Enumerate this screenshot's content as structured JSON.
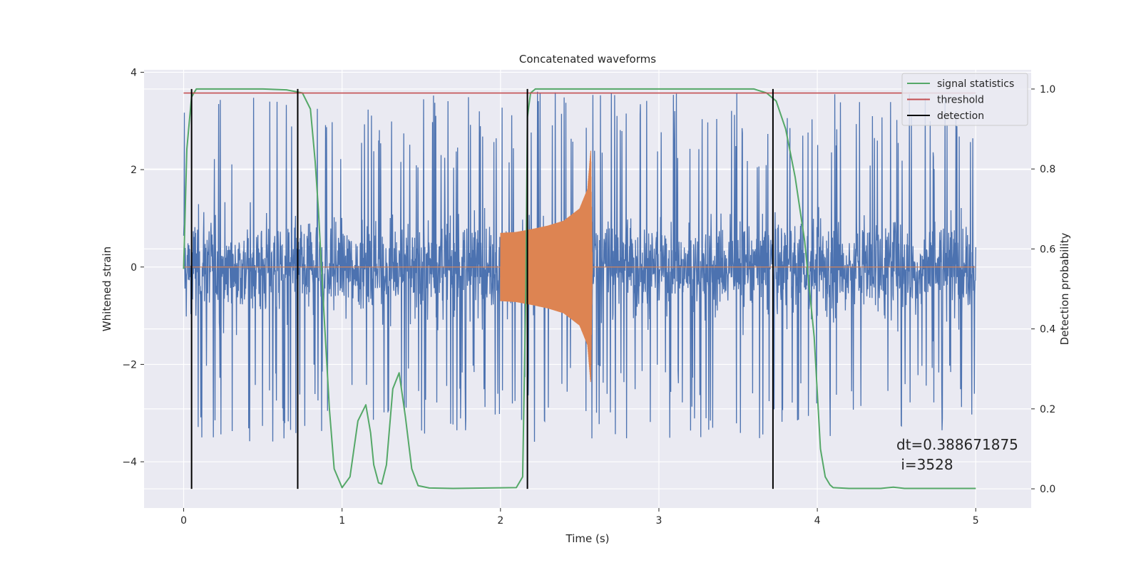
{
  "chart_data": {
    "type": "line",
    "title": "Concatenated waveforms",
    "xlabel": "Time (s)",
    "ylabel": "Whitened strain",
    "y2label": "Detection probability",
    "xlim": [
      -0.25,
      5.35
    ],
    "ylim": [
      -4.95,
      4.05
    ],
    "y2lim": [
      -0.048,
      1.048
    ],
    "xticks": [
      0,
      1,
      2,
      3,
      4,
      5
    ],
    "yticks": [
      -4,
      -2,
      0,
      2,
      4
    ],
    "yticklabels": [
      "−4",
      "−2",
      "0",
      "2",
      "4"
    ],
    "y2ticks": [
      0.0,
      0.2,
      0.4,
      0.6,
      0.8,
      1.0
    ],
    "y2ticklabels": [
      "0.0",
      "0.2",
      "0.4",
      "0.6",
      "0.8",
      "1.0"
    ],
    "grid": true,
    "legend_position": "top-right",
    "colors": {
      "background": "#eaeaf2",
      "grid": "#ffffff",
      "noise": "#4c72b0",
      "waveform": "#dd8452",
      "signal_statistics": "#55a868",
      "threshold": "#c44e52",
      "detection": "#000000"
    },
    "series": [
      {
        "name": "",
        "role": "whitened noisy strain (left axis)",
        "x_range": [
          0,
          5
        ],
        "approx_envelope": [
          -4.6,
          3.6
        ],
        "typical_spikes_abs": [
          2.0,
          3.6
        ]
      },
      {
        "name": "",
        "role": "clean injected chirp waveform (left axis)",
        "x": [
          0.0,
          2.0,
          2.0,
          2.1,
          2.2,
          2.3,
          2.4,
          2.5,
          2.55,
          2.57,
          2.58,
          5.0
        ],
        "amplitude": [
          0.0,
          0.0,
          0.7,
          0.72,
          0.78,
          0.85,
          0.95,
          1.2,
          1.6,
          2.4,
          0.0,
          0.0
        ]
      },
      {
        "name": "signal statistics",
        "axis": "right",
        "x": [
          0.0,
          0.02,
          0.05,
          0.08,
          0.1,
          0.15,
          0.5,
          0.65,
          0.75,
          0.8,
          0.83,
          0.85,
          0.88,
          0.92,
          0.95,
          1.0,
          1.05,
          1.1,
          1.15,
          1.18,
          1.2,
          1.23,
          1.25,
          1.28,
          1.32,
          1.36,
          1.4,
          1.44,
          1.48,
          1.55,
          1.7,
          2.1,
          2.14,
          2.16,
          2.17,
          2.19,
          2.22,
          2.3,
          2.6,
          3.6,
          3.68,
          3.74,
          3.8,
          3.86,
          3.92,
          3.98,
          4.02,
          4.05,
          4.08,
          4.1,
          4.2,
          4.4,
          4.48,
          4.55,
          5.0
        ],
        "values": [
          0.55,
          0.85,
          0.98,
          1.0,
          1.0,
          1.0,
          1.0,
          0.998,
          0.99,
          0.95,
          0.82,
          0.7,
          0.48,
          0.2,
          0.05,
          0.003,
          0.03,
          0.17,
          0.21,
          0.14,
          0.06,
          0.015,
          0.012,
          0.06,
          0.25,
          0.29,
          0.18,
          0.05,
          0.008,
          0.002,
          0.001,
          0.003,
          0.03,
          0.5,
          0.93,
          0.99,
          1.0,
          1.0,
          1.0,
          1.0,
          0.99,
          0.97,
          0.9,
          0.78,
          0.62,
          0.38,
          0.1,
          0.03,
          0.01,
          0.003,
          0.001,
          0.001,
          0.004,
          0.001,
          0.001
        ]
      },
      {
        "name": "threshold",
        "axis": "right",
        "x": [
          0,
          5
        ],
        "values": [
          0.99,
          0.99
        ]
      },
      {
        "name": "detection",
        "type": "vlines",
        "axis": "right",
        "x": [
          0.05,
          0.72,
          2.17,
          3.72
        ],
        "ymin": 0.0,
        "ymax": 1.0
      }
    ],
    "annotation": {
      "line1": "dt=0.388671875",
      "line2": " i=3528"
    }
  }
}
